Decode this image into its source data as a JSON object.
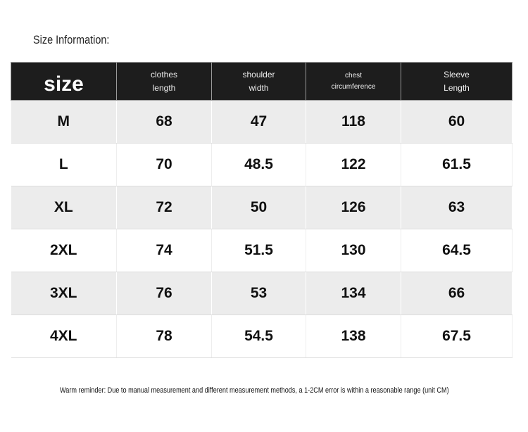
{
  "title": "Size Information:",
  "table": {
    "headers": [
      {
        "line1": "size",
        "line2": ""
      },
      {
        "line1": "clothes",
        "line2": "length"
      },
      {
        "line1": "shoulder",
        "line2": "width"
      },
      {
        "line1": "chest",
        "line2": "circumference"
      },
      {
        "line1": "Sleeve",
        "line2": "Length"
      }
    ],
    "rows": [
      [
        "M",
        "68",
        "47",
        "118",
        "60"
      ],
      [
        "L",
        "70",
        "48.5",
        "122",
        "61.5"
      ],
      [
        "XL",
        "72",
        "50",
        "126",
        "63"
      ],
      [
        "2XL",
        "74",
        "51.5",
        "130",
        "64.5"
      ],
      [
        "3XL",
        "76",
        "53",
        "134",
        "66"
      ],
      [
        "4XL",
        "78",
        "54.5",
        "138",
        "67.5"
      ]
    ]
  },
  "note": "Warm reminder: Due to manual measurement and different measurement methods, a 1-2CM error is within a reasonable range (unit CM)"
}
